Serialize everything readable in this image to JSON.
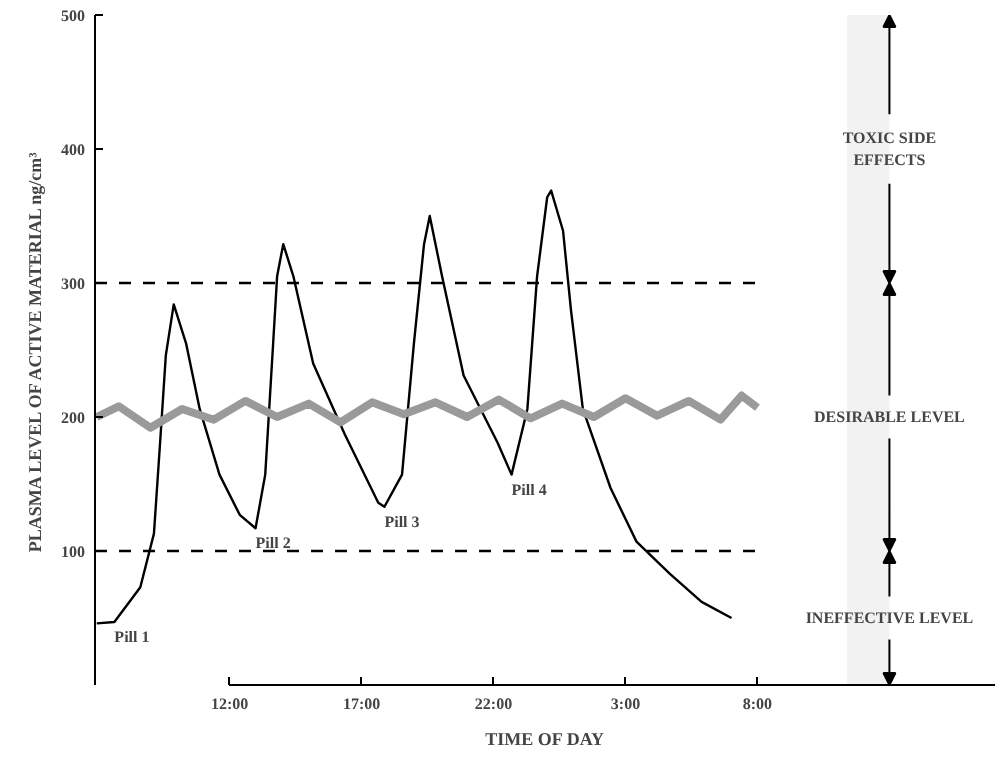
{
  "chart_data": {
    "type": "line",
    "xlabel": "TIME OF DAY",
    "ylabel": "PLASMA LEVEL OF ACTIVE MATERIAL ng/cm³",
    "series": [
      {
        "color": "#000000",
        "x": [
          "2000-01-01T06:58",
          "2000-01-01T07:38",
          "2000-01-01T08:37",
          "2000-01-01T09:08",
          "2000-01-01T09:22",
          "2000-01-01T09:35",
          "2000-01-01T09:53",
          "2000-01-01T10:21",
          "2000-01-01T10:52",
          "2000-01-01T11:37",
          "2000-01-01T12:23",
          "2000-01-01T12:59",
          "2000-01-01T13:21",
          "2000-01-01T13:39",
          "2000-01-01T13:48",
          "2000-01-01T14:02",
          "2000-01-01T14:25",
          "2000-01-01T15:10",
          "2000-01-01T16:22",
          "2000-01-01T17:38",
          "2000-01-01T17:52",
          "2000-01-01T18:32",
          "2000-01-01T18:59",
          "2000-01-01T19:22",
          "2000-01-01T19:35",
          "2000-01-01T20:03",
          "2000-01-01T20:52",
          "2000-01-01T22:09",
          "2000-01-01T22:41",
          "2000-01-01T23:17",
          "2000-01-01T23:39",
          "2000-01-02T00:02",
          "2000-01-02T00:11",
          "2000-01-02T00:38",
          "2000-01-02T00:56",
          "2000-01-02T01:23",
          "2000-01-02T02:26",
          "2000-01-02T03:25",
          "2000-01-02T04:41",
          "2000-01-02T05:53",
          "2000-01-02T07:01"
        ],
        "values": [
          46,
          47,
          73,
          113,
          181,
          246,
          284,
          255,
          206,
          157,
          127,
          117,
          157,
          255,
          305,
          329,
          305,
          240,
          187,
          136,
          133,
          157,
          255,
          329,
          350,
          305,
          231,
          181,
          157,
          206,
          305,
          364,
          369,
          339,
          280,
          206,
          147,
          107,
          83,
          62,
          50
        ]
      },
      {
        "color": "#9a9a9a",
        "x": [
          "2000-01-01T06:58",
          "2000-01-01T07:48",
          "2000-01-01T09:00",
          "2000-01-01T10:12",
          "2000-01-01T11:24",
          "2000-01-01T12:36",
          "2000-01-01T13:48",
          "2000-01-01T15:00",
          "2000-01-01T16:12",
          "2000-01-01T17:24",
          "2000-01-01T18:36",
          "2000-01-01T19:48",
          "2000-01-01T21:00",
          "2000-01-01T22:12",
          "2000-01-01T23:24",
          "2000-01-02T00:36",
          "2000-01-02T01:48",
          "2000-01-02T03:00",
          "2000-01-02T04:12",
          "2000-01-02T05:24",
          "2000-01-02T06:36",
          "2000-01-02T07:24",
          "2000-01-02T08:00"
        ],
        "values": [
          200,
          208,
          192,
          206,
          198,
          212,
          200,
          210,
          196,
          211,
          202,
          211,
          200,
          213,
          199,
          210,
          200,
          214,
          201,
          212,
          198,
          216,
          207
        ]
      }
    ],
    "xlim": [
      "2000-01-01T06:54",
      "2000-01-02T17:00"
    ],
    "ylim": [
      0,
      500
    ],
    "xticks": [
      {
        "value": "2000-01-01T12:00",
        "label": "12:00"
      },
      {
        "value": "2000-01-01T17:00",
        "label": "17:00"
      },
      {
        "value": "2000-01-01T22:00",
        "label": "22:00"
      },
      {
        "value": "2000-01-02T03:00",
        "label": "3:00"
      },
      {
        "value": "2000-01-02T08:00",
        "label": "8:00"
      }
    ],
    "yticks": [
      100,
      200,
      300,
      400,
      500
    ],
    "ref_lines": [
      {
        "axis": "y",
        "value": 100,
        "line_style": "dashed"
      },
      {
        "axis": "y",
        "value": 300,
        "line_style": "dashed"
      }
    ],
    "bands": [
      {
        "axis": "y",
        "from": 300,
        "to": 500,
        "label": "TOXIC SIDE\nEFFECTS",
        "color": "#f2f2f2"
      },
      {
        "axis": "y",
        "from": 100,
        "to": 300,
        "label": "DESIRABLE LEVEL",
        "color": "#f2f2f2"
      },
      {
        "axis": "y",
        "from": 0,
        "to": 100,
        "label": "INEFFECTIVE LEVEL",
        "color": "#f2f2f2"
      }
    ],
    "annotations": [
      {
        "text": "Pill 1",
        "x": "2000-01-01T07:38",
        "y": 47
      },
      {
        "text": "Pill 2",
        "x": "2000-01-01T12:59",
        "y": 117
      },
      {
        "text": "Pill 3",
        "x": "2000-01-01T17:52",
        "y": 133
      },
      {
        "text": "Pill 4",
        "x": "2000-01-01T22:41",
        "y": 157
      }
    ],
    "grid": false,
    "marker": "none",
    "line_style": "solid"
  }
}
